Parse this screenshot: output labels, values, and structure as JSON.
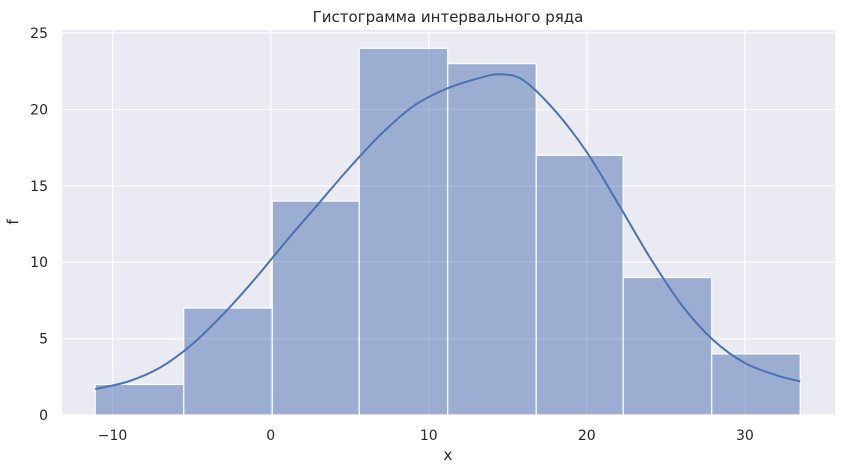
{
  "chart_data": {
    "type": "bar",
    "title": "Гистограмма интервального ряда",
    "xlabel": "x",
    "ylabel": "f",
    "xlim": [
      -13.2,
      35.7
    ],
    "ylim": [
      0,
      25.2
    ],
    "xticks": [
      -10,
      0,
      10,
      20,
      30
    ],
    "yticks": [
      0,
      5,
      10,
      15,
      20,
      25
    ],
    "grid": true,
    "bins": [
      {
        "x0": -11.1,
        "x1": -5.5,
        "value": 2
      },
      {
        "x0": -5.5,
        "x1": 0.1,
        "value": 7
      },
      {
        "x0": 0.1,
        "x1": 5.6,
        "value": 14
      },
      {
        "x0": 5.6,
        "x1": 11.2,
        "value": 24
      },
      {
        "x0": 11.2,
        "x1": 16.8,
        "value": 23
      },
      {
        "x0": 16.8,
        "x1": 22.3,
        "value": 17
      },
      {
        "x0": 22.3,
        "x1": 27.9,
        "value": 9
      },
      {
        "x0": 27.9,
        "x1": 33.5,
        "value": 4
      }
    ],
    "kde": {
      "x": [
        -11.1,
        -9,
        -7,
        -5,
        -3,
        -1,
        1,
        3,
        5,
        7,
        9,
        11,
        13,
        14.5,
        16,
        18,
        20,
        22,
        24,
        26,
        28,
        30,
        32,
        33.5
      ],
      "y": [
        1.7,
        2.2,
        3.1,
        4.6,
        6.6,
        8.9,
        11.4,
        13.8,
        16.2,
        18.4,
        20.2,
        21.3,
        22.0,
        22.3,
        21.9,
        19.9,
        17.2,
        13.8,
        10.3,
        7.2,
        4.9,
        3.4,
        2.6,
        2.2
      ]
    },
    "colors": {
      "background": "#eaeaf2",
      "bar_fill": "#4c72b0",
      "bar_opacity": 0.5,
      "line": "#4c72b0",
      "grid": "#ffffff"
    }
  }
}
